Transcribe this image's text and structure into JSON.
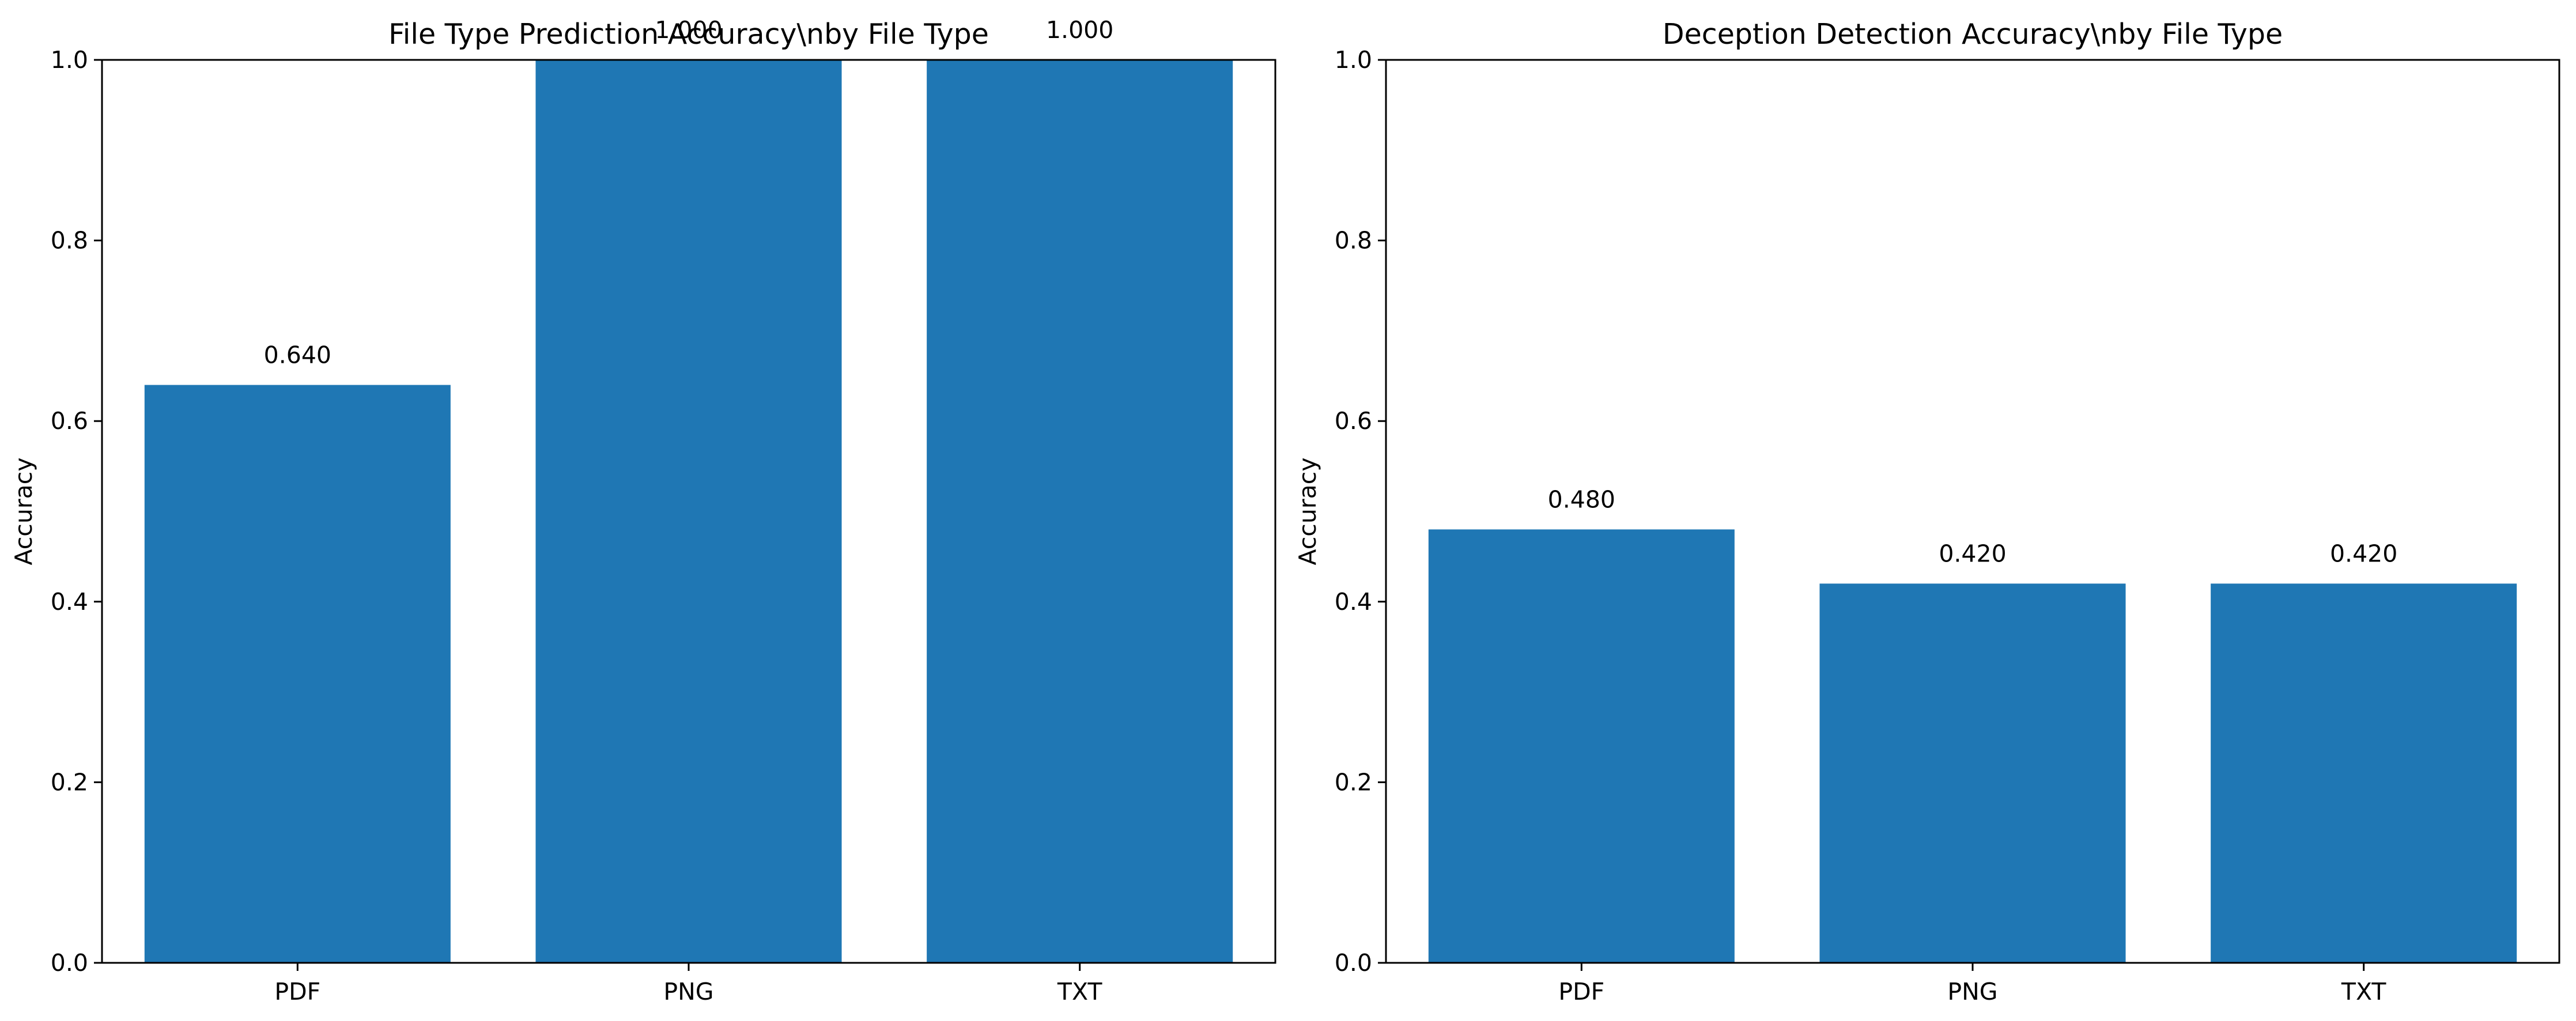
{
  "chart_data": [
    {
      "type": "bar",
      "title": "File Type Prediction Accuracy\\nby File Type",
      "xlabel": "",
      "ylabel": "Accuracy",
      "categories": [
        "PDF",
        "PNG",
        "TXT"
      ],
      "values": [
        0.64,
        1.0,
        1.0
      ],
      "value_labels": [
        "0.640",
        "1.000",
        "1.000"
      ],
      "ylim": [
        0,
        1
      ],
      "yticks": [
        0.0,
        0.2,
        0.4,
        0.6,
        0.8,
        1.0
      ],
      "ytick_labels": [
        "0.0",
        "0.2",
        "0.4",
        "0.6",
        "0.8",
        "1.0"
      ],
      "bar_color": "#1f77b4",
      "grid": false,
      "legend": "none"
    },
    {
      "type": "bar",
      "title": "Deception Detection Accuracy\\nby File Type",
      "xlabel": "",
      "ylabel": "Accuracy",
      "categories": [
        "PDF",
        "PNG",
        "TXT"
      ],
      "values": [
        0.48,
        0.42,
        0.42
      ],
      "value_labels": [
        "0.480",
        "0.420",
        "0.420"
      ],
      "ylim": [
        0,
        1
      ],
      "yticks": [
        0.0,
        0.2,
        0.4,
        0.6,
        0.8,
        1.0
      ],
      "ytick_labels": [
        "0.0",
        "0.2",
        "0.4",
        "0.6",
        "0.8",
        "1.0"
      ],
      "bar_color": "#1f77b4",
      "grid": false,
      "legend": "none"
    }
  ]
}
